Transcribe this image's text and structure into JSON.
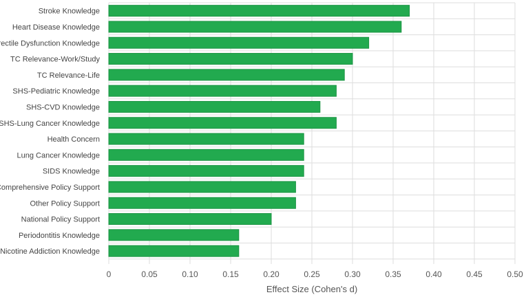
{
  "chart_data": {
    "type": "bar",
    "orientation": "horizontal",
    "title": "",
    "xlabel": "Effect Size (Cohen's d)",
    "ylabel": "",
    "xlim": [
      0,
      0.5
    ],
    "x_ticks": [
      "0",
      "0.05",
      "0.10",
      "0.15",
      "0.20",
      "0.25",
      "0.30",
      "0.35",
      "0.40",
      "0.45",
      "0.50"
    ],
    "grid": true,
    "legend": "none",
    "colors": {
      "bar_fill": "#22aa4f",
      "bar_edge": "#1c9444",
      "grid": "#dddddd"
    },
    "categories": [
      "Stroke Knowledge",
      "Heart Disease Knowledge",
      "Erectile Dysfunction Knowledge",
      "TC Relevance-Work/Study",
      "TC Relevance-Life",
      "SHS-Pediatric Knowledge",
      "SHS-CVD Knowledge",
      "SHS-Lung Cancer Knowledge",
      "Health Concern",
      "Lung Cancer Knowledge",
      "SIDS Knowledge",
      "Comprehensive Policy Support",
      "Other Policy Support",
      "National Policy Support",
      "Periodontitis Knowledge",
      "Nicotine Addiction Knowledge"
    ],
    "values": [
      0.37,
      0.36,
      0.32,
      0.3,
      0.29,
      0.28,
      0.26,
      0.28,
      0.24,
      0.24,
      0.24,
      0.23,
      0.23,
      0.2,
      0.16,
      0.16
    ]
  }
}
